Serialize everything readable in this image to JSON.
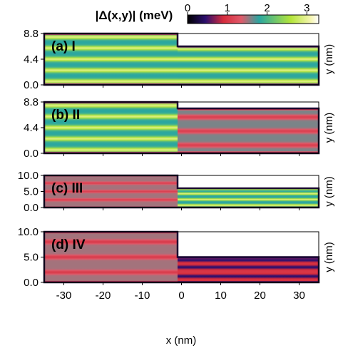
{
  "colorbar": {
    "label": "|Δ(x,y)| (meV)",
    "ticks": [
      "0",
      "1",
      "2",
      "3"
    ],
    "stops": [
      {
        "v": 0.0,
        "color": "#000000"
      },
      {
        "v": 0.45,
        "color": "#2b0f6e"
      },
      {
        "v": 0.9,
        "color": "#d62c3c"
      },
      {
        "v": 1.35,
        "color": "#e05a6a"
      },
      {
        "v": 1.8,
        "color": "#2aa6a0"
      },
      {
        "v": 2.6,
        "color": "#b4e53a"
      },
      {
        "v": 3.1,
        "color": "#f5f5b0"
      },
      {
        "v": 3.3,
        "color": "#ffffff"
      }
    ]
  },
  "xaxis": {
    "label": "x (nm)",
    "ticks": [
      "-30",
      "-20",
      "-10",
      "0",
      "10",
      "20",
      "30"
    ]
  },
  "chart_data": [
    {
      "type": "heatmap",
      "panel": "(a) I",
      "title": "(a) I",
      "xlabel": "",
      "ylabel": "y (nm)",
      "xlim": [
        -35,
        35
      ],
      "ylim": [
        0,
        8.8
      ],
      "yticks": [
        "0.0",
        "4.4",
        "8.8"
      ],
      "left_width": 8.8,
      "right_width": 6.6,
      "step_x": -1,
      "left_bands": [
        0.6,
        2.5,
        4.4,
        6.3,
        8.2
      ],
      "right_bands": [
        0.6,
        2.5,
        4.4,
        6.2
      ],
      "band_value": 2.9,
      "background_value": 1.8,
      "right_band_value": 2.9,
      "right_background_value": 1.8
    },
    {
      "type": "heatmap",
      "panel": "(b) II",
      "title": "(b) II",
      "xlabel": "",
      "ylabel": "y (nm)",
      "xlim": [
        -35,
        35
      ],
      "ylim": [
        0,
        8.8
      ],
      "yticks": [
        "0.0",
        "4.4",
        "8.8"
      ],
      "left_width": 8.8,
      "right_width": 7.7,
      "step_x": -1,
      "left_bands": [
        0.6,
        2.5,
        4.4,
        6.3,
        8.2
      ],
      "right_bands": [
        1.4,
        3.8,
        6.2
      ],
      "band_value": 2.9,
      "background_value": 1.8,
      "right_band_value": 1.1,
      "right_background_value": 1.6
    },
    {
      "type": "heatmap",
      "panel": "(c) III",
      "title": "(c) III",
      "xlabel": "",
      "ylabel": "y (nm)",
      "xlim": [
        -35,
        35
      ],
      "ylim": [
        0,
        10.0
      ],
      "yticks": [
        "0.0",
        "5.0",
        "10.0"
      ],
      "left_width": 10.0,
      "right_width": 6.0,
      "step_x": -1,
      "left_bands": [
        2.4,
        5.0,
        7.6
      ],
      "right_bands": [
        0.7,
        2.5,
        4.3,
        5.8
      ],
      "band_value": 1.1,
      "background_value": 1.5,
      "right_band_value": 2.9,
      "right_background_value": 1.8
    },
    {
      "type": "heatmap",
      "panel": "(d) IV",
      "title": "(d) IV",
      "xlabel": "",
      "ylabel": "y (nm)",
      "xlim": [
        -35,
        35
      ],
      "ylim": [
        0,
        10.0
      ],
      "yticks": [
        "0.0",
        "5.0",
        "10.0"
      ],
      "left_width": 10.0,
      "right_width": 5.0,
      "step_x": -1,
      "left_bands": [
        2.0,
        5.0,
        8.0
      ],
      "right_bands": [
        1.2,
        3.0,
        4.4
      ],
      "band_value": 1.05,
      "background_value": 1.5,
      "right_band_value": 0.45,
      "right_background_value": 1.0
    }
  ]
}
